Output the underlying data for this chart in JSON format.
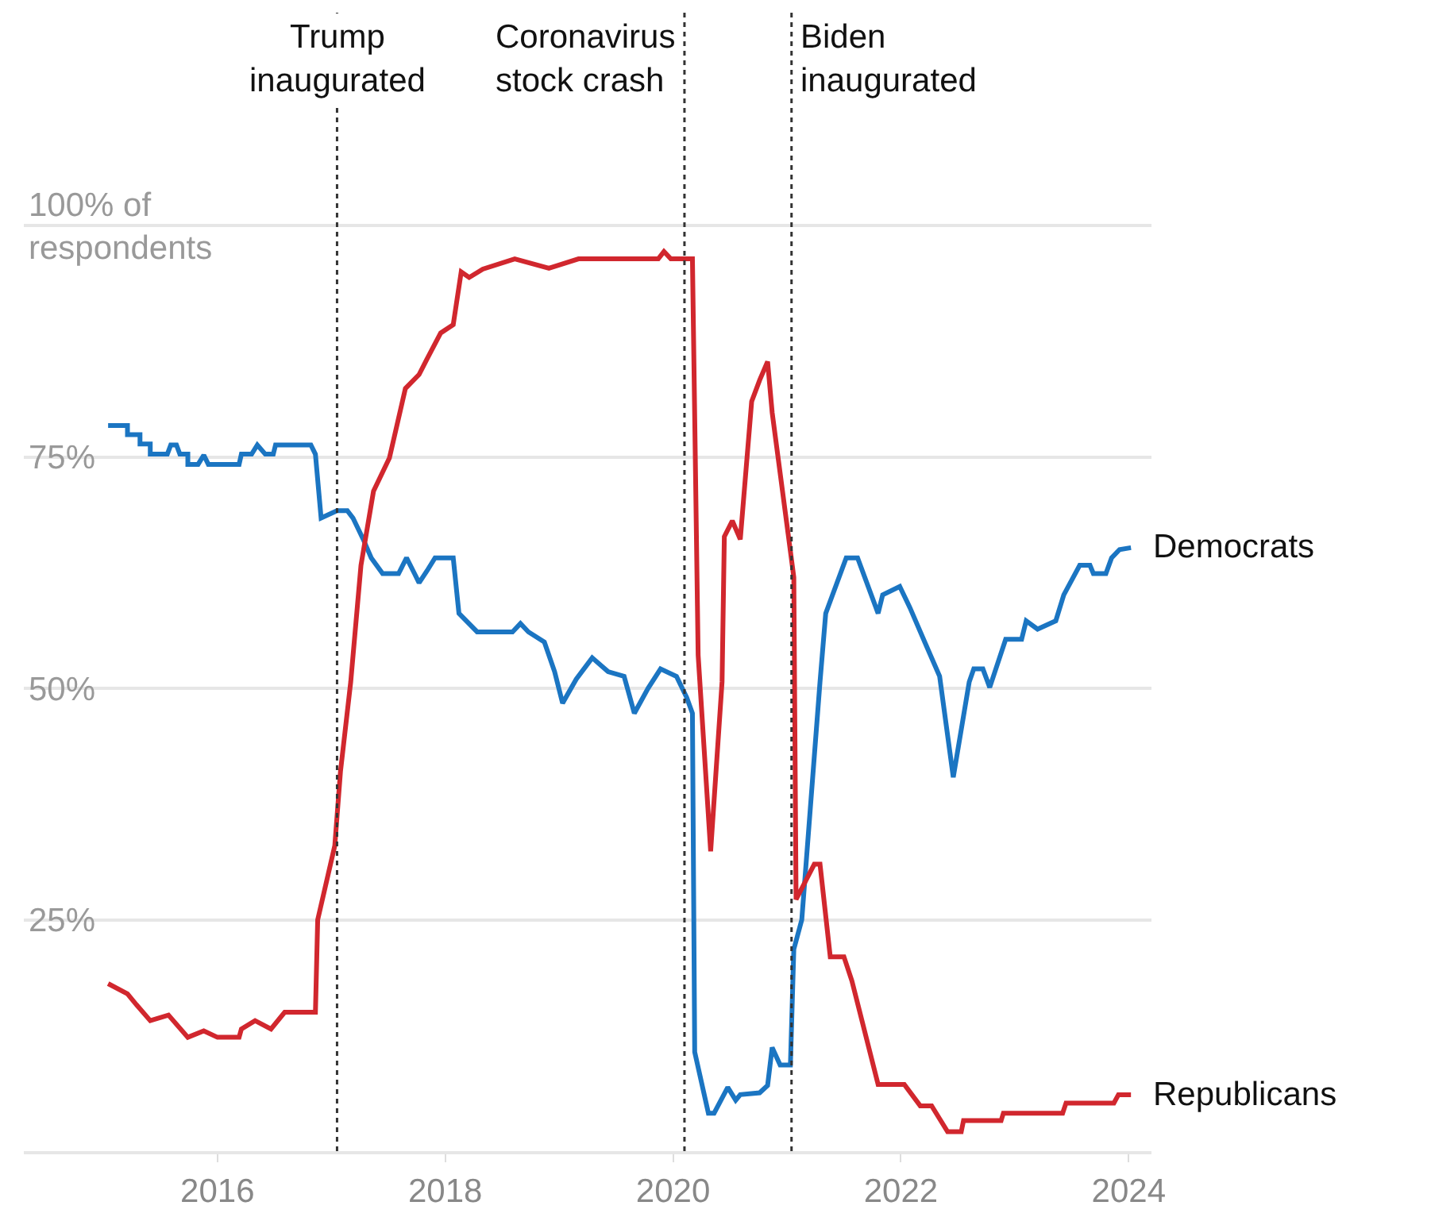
{
  "chart_data": {
    "type": "line",
    "legend": false,
    "grid": "y",
    "marker": "none",
    "line_style": "solid",
    "xlim": [
      2014.3,
      2024.2
    ],
    "xticks": [
      2016,
      2018,
      2020,
      2022,
      2024
    ],
    "ylim": [
      0,
      123
    ],
    "yticks": [
      {
        "value": 0,
        "label": null
      },
      {
        "value": 25,
        "label": "25%"
      },
      {
        "value": 50,
        "label": "50%"
      },
      {
        "value": 75,
        "label": "75%"
      },
      {
        "value": 100,
        "label": "100% of\nrespondents"
      }
    ],
    "ref_lines": [
      {
        "axis": "x",
        "value": 2017.05,
        "label": "Trump\ninaugurated",
        "line_style": "dotted",
        "color": "#333333"
      },
      {
        "axis": "x",
        "value": 2020.1,
        "label": "Coronavirus\nstock crash",
        "line_style": "dotted",
        "color": "#333333"
      },
      {
        "axis": "x",
        "value": 2021.04,
        "label": "Biden\ninaugurated",
        "line_style": "dotted",
        "color": "#333333"
      }
    ],
    "series": [
      {
        "name": "Democrats",
        "color": "#1b75c2",
        "x": [
          2015.04,
          2015.21,
          2015.21,
          2015.32,
          2015.32,
          2015.41,
          2015.41,
          2015.56,
          2015.59,
          2015.64,
          2015.67,
          2015.74,
          2015.74,
          2015.83,
          2015.88,
          2015.92,
          2016.19,
          2016.21,
          2016.3,
          2016.35,
          2016.42,
          2016.49,
          2016.51,
          2016.82,
          2016.86,
          2016.91,
          2017.05,
          2017.14,
          2017.19,
          2017.28,
          2017.35,
          2017.45,
          2017.59,
          2017.66,
          2017.73,
          2017.77,
          2017.84,
          2017.91,
          2018.07,
          2018.12,
          2018.28,
          2018.59,
          2018.66,
          2018.73,
          2018.87,
          2018.96,
          2019.03,
          2019.15,
          2019.29,
          2019.43,
          2019.57,
          2019.66,
          2019.78,
          2019.89,
          2020.03,
          2020.12,
          2020.17,
          2020.19,
          2020.31,
          2020.36,
          2020.48,
          2020.55,
          2020.59,
          2020.76,
          2020.83,
          2020.87,
          2020.94,
          2021.03,
          2021.06,
          2021.13,
          2021.29,
          2021.34,
          2021.52,
          2021.62,
          2021.8,
          2021.84,
          2021.99,
          2022.08,
          2022.22,
          2022.34,
          2022.46,
          2022.6,
          2022.64,
          2022.72,
          2022.78,
          2022.92,
          2023.06,
          2023.1,
          2023.2,
          2023.36,
          2023.43,
          2023.57,
          2023.66,
          2023.69,
          2023.8,
          2023.85,
          2023.92,
          2024.02
        ],
        "values": [
          78.4,
          78.4,
          77.4,
          77.4,
          76.4,
          76.4,
          75.3,
          75.3,
          76.3,
          76.3,
          75.3,
          75.3,
          74.2,
          74.2,
          75.2,
          74.2,
          74.2,
          75.3,
          75.3,
          76.3,
          75.3,
          75.3,
          76.3,
          76.3,
          75.3,
          68.4,
          69.2,
          69.2,
          68.4,
          66.1,
          64.1,
          62.4,
          62.4,
          64.1,
          62.4,
          61.4,
          62.7,
          64.1,
          64.1,
          58.1,
          56.1,
          56.1,
          57.0,
          56.1,
          55.0,
          51.8,
          48.4,
          51,
          53.3,
          51.8,
          51.3,
          47.3,
          50,
          52.1,
          51.3,
          49,
          47.3,
          10.7,
          4.1,
          4.1,
          6.9,
          5.5,
          6.1,
          6.3,
          7.1,
          11.2,
          9.3,
          9.3,
          21.8,
          25,
          50.7,
          58.1,
          64.1,
          64.1,
          58.1,
          60.1,
          61,
          58.7,
          54.7,
          51.3,
          40.4,
          50.7,
          52.1,
          52.1,
          50.1,
          55.3,
          55.3,
          57.3,
          56.4,
          57.3,
          60.1,
          63.3,
          63.3,
          62.4,
          62.4,
          64.1,
          65.0,
          65.2
        ]
      },
      {
        "name": "Republicans",
        "color": "#d1272e",
        "x": [
          2015.04,
          2015.21,
          2015.29,
          2015.41,
          2015.57,
          2015.74,
          2015.88,
          2016.0,
          2016.19,
          2016.21,
          2016.33,
          2016.47,
          2016.59,
          2016.86,
          2016.88,
          2017.03,
          2017.08,
          2017.17,
          2017.26,
          2017.37,
          2017.51,
          2017.65,
          2017.77,
          2017.84,
          2017.96,
          2018.07,
          2018.14,
          2018.21,
          2018.33,
          2018.61,
          2018.91,
          2019.17,
          2019.87,
          2019.92,
          2019.98,
          2020.17,
          2020.22,
          2020.33,
          2020.43,
          2020.45,
          2020.52,
          2020.59,
          2020.69,
          2020.76,
          2020.83,
          2020.87,
          2021.01,
          2021.06,
          2021.08,
          2021.24,
          2021.29,
          2021.38,
          2021.5,
          2021.57,
          2021.8,
          2022.03,
          2022.17,
          2022.27,
          2022.41,
          2022.53,
          2022.55,
          2022.88,
          2022.9,
          2023.42,
          2023.45,
          2023.87,
          2023.91,
          2024.02
        ],
        "values": [
          18.1,
          17.0,
          15.8,
          14.1,
          14.7,
          12.3,
          13.0,
          12.3,
          12.3,
          13.2,
          14.1,
          13.2,
          15.0,
          15.0,
          25.0,
          33.0,
          41,
          50.7,
          63.3,
          71.3,
          74.9,
          82.4,
          83.9,
          85.6,
          88.4,
          89.3,
          95.0,
          94.4,
          95.3,
          96.4,
          95.4,
          96.4,
          96.4,
          97.2,
          96.4,
          96.4,
          53.6,
          32.4,
          50.7,
          66.4,
          68.1,
          66.1,
          81.0,
          83.3,
          85.3,
          79.8,
          66.7,
          62,
          27.2,
          31.0,
          31.0,
          21.0,
          21.0,
          18.4,
          7.2,
          7.2,
          4.9,
          4.9,
          2.1,
          2.1,
          3.3,
          3.3,
          4.1,
          4.1,
          5.2,
          5.2,
          6.1,
          6.1
        ]
      }
    ]
  }
}
